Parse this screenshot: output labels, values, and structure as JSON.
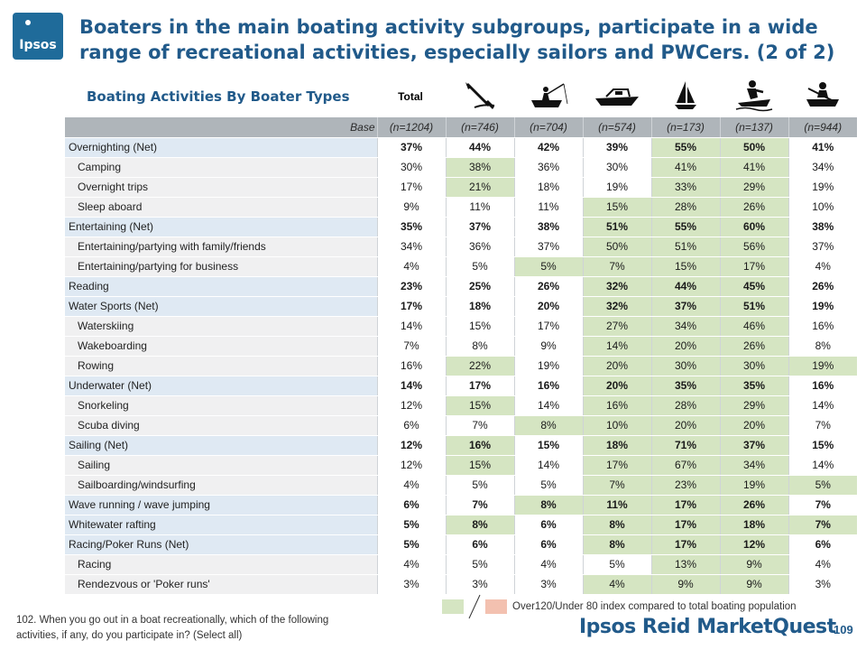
{
  "header": {
    "logo_text": "Ipsos",
    "title": "Boaters in the main boating activity subgroups, participate in a wide range of recreational activities, especially sailors and PWCers. (2 of 2)",
    "subtitle": "Boating Activities By Boater Types",
    "total_label": "Total",
    "column_icons": [
      "kayak-paddle-icon",
      "fishing-boat-icon",
      "motorboat-icon",
      "sailboat-icon",
      "personal-watercraft-icon",
      "rowboat-icon"
    ]
  },
  "table": {
    "base_label": "Base",
    "bases": [
      "(n=1204)",
      "(n=746)",
      "(n=704)",
      "(n=574)",
      "(n=173)",
      "(n=137)",
      "(n=944)"
    ],
    "rows": [
      {
        "label": "Overnighting (Net)",
        "net": true,
        "values": [
          "37%",
          "44%",
          "42%",
          "39%",
          "55%",
          "50%",
          "41%"
        ],
        "highlight": [
          "",
          "",
          "",
          "",
          "hi",
          "hi",
          ""
        ]
      },
      {
        "label": "Camping",
        "net": false,
        "values": [
          "30%",
          "38%",
          "36%",
          "30%",
          "41%",
          "41%",
          "34%"
        ],
        "highlight": [
          "",
          "hi",
          "",
          "",
          "hi",
          "hi",
          ""
        ]
      },
      {
        "label": "Overnight trips",
        "net": false,
        "values": [
          "17%",
          "21%",
          "18%",
          "19%",
          "33%",
          "29%",
          "19%"
        ],
        "highlight": [
          "",
          "hi",
          "",
          "",
          "hi",
          "hi",
          ""
        ]
      },
      {
        "label": "Sleep aboard",
        "net": false,
        "values": [
          "9%",
          "11%",
          "11%",
          "15%",
          "28%",
          "26%",
          "10%"
        ],
        "highlight": [
          "",
          "",
          "",
          "hi",
          "hi",
          "hi",
          ""
        ]
      },
      {
        "label": "Entertaining (Net)",
        "net": true,
        "values": [
          "35%",
          "37%",
          "38%",
          "51%",
          "55%",
          "60%",
          "38%"
        ],
        "highlight": [
          "",
          "",
          "",
          "hi",
          "hi",
          "hi",
          ""
        ]
      },
      {
        "label": "Entertaining/partying with family/friends",
        "net": false,
        "values": [
          "34%",
          "36%",
          "37%",
          "50%",
          "51%",
          "56%",
          "37%"
        ],
        "highlight": [
          "",
          "",
          "",
          "hi",
          "hi",
          "hi",
          ""
        ]
      },
      {
        "label": "Entertaining/partying for business",
        "net": false,
        "values": [
          "4%",
          "5%",
          "5%",
          "7%",
          "15%",
          "17%",
          "4%"
        ],
        "highlight": [
          "",
          "",
          "hi",
          "hi",
          "hi",
          "hi",
          ""
        ]
      },
      {
        "label": "Reading",
        "net": true,
        "values": [
          "23%",
          "25%",
          "26%",
          "32%",
          "44%",
          "45%",
          "26%"
        ],
        "highlight": [
          "",
          "",
          "",
          "hi",
          "hi",
          "hi",
          ""
        ]
      },
      {
        "label": "Water Sports (Net)",
        "net": true,
        "values": [
          "17%",
          "18%",
          "20%",
          "32%",
          "37%",
          "51%",
          "19%"
        ],
        "highlight": [
          "",
          "",
          "",
          "hi",
          "hi",
          "hi",
          ""
        ]
      },
      {
        "label": "Waterskiing",
        "net": false,
        "values": [
          "14%",
          "15%",
          "17%",
          "27%",
          "34%",
          "46%",
          "16%"
        ],
        "highlight": [
          "",
          "",
          "",
          "hi",
          "hi",
          "hi",
          ""
        ]
      },
      {
        "label": "Wakeboarding",
        "net": false,
        "values": [
          "7%",
          "8%",
          "9%",
          "14%",
          "20%",
          "26%",
          "8%"
        ],
        "highlight": [
          "",
          "",
          "",
          "hi",
          "hi",
          "hi",
          ""
        ]
      },
      {
        "label": "Rowing",
        "net": false,
        "values": [
          "16%",
          "22%",
          "19%",
          "20%",
          "30%",
          "30%",
          "19%"
        ],
        "highlight": [
          "",
          "hi",
          "",
          "hi",
          "hi",
          "hi",
          "hi"
        ]
      },
      {
        "label": "Underwater (Net)",
        "net": true,
        "values": [
          "14%",
          "17%",
          "16%",
          "20%",
          "35%",
          "35%",
          "16%"
        ],
        "highlight": [
          "",
          "",
          "",
          "hi",
          "hi",
          "hi",
          ""
        ]
      },
      {
        "label": "Snorkeling",
        "net": false,
        "values": [
          "12%",
          "15%",
          "14%",
          "16%",
          "28%",
          "29%",
          "14%"
        ],
        "highlight": [
          "",
          "hi",
          "",
          "hi",
          "hi",
          "hi",
          ""
        ]
      },
      {
        "label": "Scuba diving",
        "net": false,
        "values": [
          "6%",
          "7%",
          "8%",
          "10%",
          "20%",
          "20%",
          "7%"
        ],
        "highlight": [
          "",
          "",
          "hi",
          "hi",
          "hi",
          "hi",
          ""
        ]
      },
      {
        "label": "Sailing (Net)",
        "net": true,
        "values": [
          "12%",
          "16%",
          "15%",
          "18%",
          "71%",
          "37%",
          "15%"
        ],
        "highlight": [
          "",
          "hi",
          "",
          "hi",
          "hi",
          "hi",
          ""
        ]
      },
      {
        "label": "Sailing",
        "net": false,
        "values": [
          "12%",
          "15%",
          "14%",
          "17%",
          "67%",
          "34%",
          "14%"
        ],
        "highlight": [
          "",
          "hi",
          "",
          "hi",
          "hi",
          "hi",
          ""
        ]
      },
      {
        "label": "Sailboarding/windsurfing",
        "net": false,
        "values": [
          "4%",
          "5%",
          "5%",
          "7%",
          "23%",
          "19%",
          "5%"
        ],
        "highlight": [
          "",
          "",
          "",
          "hi",
          "hi",
          "hi",
          "hi"
        ]
      },
      {
        "label": "Wave running / wave jumping",
        "net": true,
        "values": [
          "6%",
          "7%",
          "8%",
          "11%",
          "17%",
          "26%",
          "7%"
        ],
        "highlight": [
          "",
          "",
          "hi",
          "hi",
          "hi",
          "hi",
          ""
        ]
      },
      {
        "label": "Whitewater rafting",
        "net": true,
        "values": [
          "5%",
          "8%",
          "6%",
          "8%",
          "17%",
          "18%",
          "7%"
        ],
        "highlight": [
          "",
          "hi",
          "",
          "hi",
          "hi",
          "hi",
          "hi"
        ]
      },
      {
        "label": "Racing/Poker Runs (Net)",
        "net": true,
        "values": [
          "5%",
          "6%",
          "6%",
          "8%",
          "17%",
          "12%",
          "6%"
        ],
        "highlight": [
          "",
          "",
          "",
          "hi",
          "hi",
          "hi",
          ""
        ]
      },
      {
        "label": "Racing",
        "net": false,
        "values": [
          "4%",
          "5%",
          "4%",
          "5%",
          "13%",
          "9%",
          "4%"
        ],
        "highlight": [
          "",
          "",
          "",
          "",
          "hi",
          "hi",
          ""
        ]
      },
      {
        "label": "Rendezvous or 'Poker runs'",
        "net": false,
        "values": [
          "3%",
          "3%",
          "3%",
          "4%",
          "9%",
          "9%",
          "3%"
        ],
        "highlight": [
          "",
          "",
          "",
          "hi",
          "hi",
          "hi",
          ""
        ]
      }
    ]
  },
  "legend": {
    "text": "Over120/Under 80 index compared to total boating population",
    "over_color": "#d5e5c2",
    "under_color": "#f3c1b0"
  },
  "footnote": "102. When you go out in a boat recreationally, which of the following activities, if any, do you participate in? (Select all)",
  "brand": "Ipsos Reid MarketQuest",
  "page_number": "109"
}
